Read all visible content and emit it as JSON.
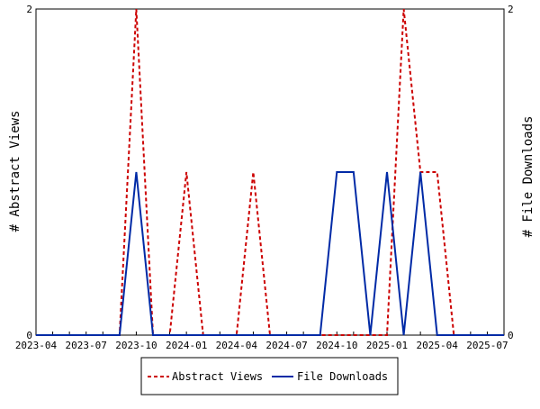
{
  "chart_data": {
    "type": "line",
    "x": [
      "2023-04",
      "2023-05",
      "2023-06",
      "2023-07",
      "2023-08",
      "2023-09",
      "2023-10",
      "2023-11",
      "2023-12",
      "2024-01",
      "2024-02",
      "2024-03",
      "2024-04",
      "2024-05",
      "2024-06",
      "2024-07",
      "2024-08",
      "2024-09",
      "2024-10",
      "2024-11",
      "2024-12",
      "2025-01",
      "2025-02",
      "2025-03",
      "2025-04",
      "2025-05",
      "2025-06",
      "2025-07",
      "2025-08"
    ],
    "x_tick_labels": [
      "2023-04",
      "2023-07",
      "2023-10",
      "2024-01",
      "2024-04",
      "2024-07",
      "2024-10",
      "2025-01",
      "2025-04",
      "2025-07"
    ],
    "series": [
      {
        "name": "Abstract Views",
        "axis": "left",
        "color": "#cc0000",
        "style": "dashed",
        "values": [
          0,
          0,
          0,
          0,
          0,
          0,
          2,
          0,
          0,
          1,
          0,
          0,
          0,
          1,
          0,
          0,
          0,
          0,
          0,
          0,
          0,
          0,
          2,
          1,
          1,
          0,
          0,
          0,
          0
        ]
      },
      {
        "name": "File Downloads",
        "axis": "right",
        "color": "#002aa6",
        "style": "solid",
        "values": [
          0,
          0,
          0,
          0,
          0,
          0,
          1,
          0,
          0,
          0,
          0,
          0,
          0,
          0,
          0,
          0,
          0,
          0,
          1,
          1,
          0,
          1,
          0,
          1,
          0,
          0,
          0,
          0,
          0
        ]
      }
    ],
    "ylabel": "# Abstract Views",
    "y2label": "# File Downloads",
    "ylim": [
      0,
      2
    ],
    "y2lim": [
      0,
      2
    ],
    "y_ticks": [
      "0",
      "2"
    ],
    "y2_ticks": [
      "0",
      "2"
    ],
    "grid": false,
    "legend_position": "bottom"
  }
}
